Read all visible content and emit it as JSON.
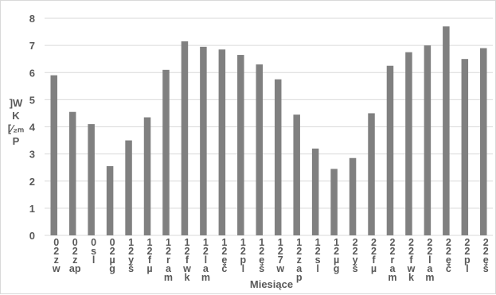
{
  "chart_data": {
    "type": "bar",
    "title": "",
    "xlabel": "Miesiące",
    "ylabel": "]W\nK\n[∕₂ₘ\nP",
    "ylim": [
      0,
      8
    ],
    "yticks": [
      "0",
      "1",
      "2",
      "3",
      "4",
      "5",
      "6",
      "7",
      "8"
    ],
    "grid": true,
    "legend": "none",
    "bar_color": "#808080",
    "categories": [
      "0\n2\nz\nw",
      "0\n2\nz\nap",
      "0\ns\nl",
      "0\n2\nµ\ng",
      "1\n2\ny\nš",
      "1\n2\nf\nµ",
      "1\n2\nr\na\nm",
      "1\n2\nf\nw\nk",
      "1\n2\nl\na\nm",
      "1\n2\nę\nč",
      "1\n2\np\nl",
      "1\n2\nę\nš",
      "1\n2\n7\nw",
      "1\n2\nz\na\np",
      "1\n2\ns\nl",
      "1\n2\nµ\ng",
      "2\n2\ny\nš",
      "2\n2\nf\nµ",
      "2\n2\nr\na\nm",
      "2\n2\nf\nw\nk",
      "2\n2\nl\na\nm",
      "2\n2\nę\nč",
      "2\n2\np\nl",
      "2\n2\nę\nš"
    ],
    "values": [
      5.9,
      4.55,
      4.1,
      2.55,
      3.5,
      4.35,
      6.1,
      7.15,
      6.95,
      6.85,
      6.65,
      6.3,
      5.75,
      4.45,
      3.2,
      2.45,
      2.85,
      4.5,
      6.25,
      6.75,
      7.0,
      7.7,
      6.5,
      6.9
    ]
  }
}
